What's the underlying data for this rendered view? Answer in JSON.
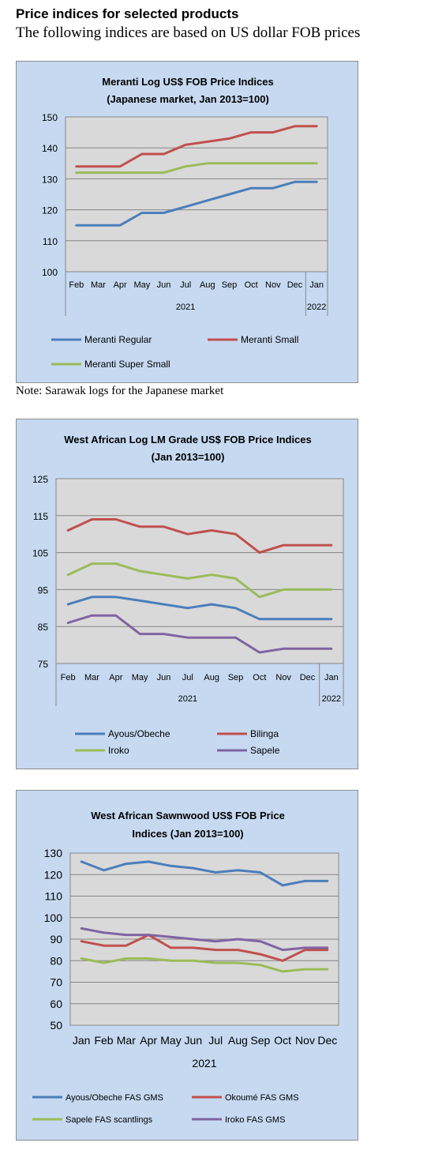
{
  "header": {
    "title": "Price indices for selected products",
    "subtitle": "The following indices are based on US dollar FOB prices"
  },
  "note": "Note: Sarawak logs for the Japanese market",
  "chart_data": [
    {
      "type": "line",
      "title": "Meranti Log US$ FOB Price Indices",
      "subtitle": "(Japanese market, Jan 2013=100)",
      "categories": [
        "Feb",
        "Mar",
        "Apr",
        "May",
        "Jun",
        "Jul",
        "Aug",
        "Sep",
        "Oct",
        "Nov",
        "Dec",
        "Jan"
      ],
      "year_labels": [
        {
          "label": "2021",
          "from": 0,
          "to": 10
        },
        {
          "label": "2022",
          "from": 11,
          "to": 11
        }
      ],
      "ylim": [
        100,
        150
      ],
      "yticks": [
        100,
        110,
        120,
        130,
        140,
        150
      ],
      "grid": true,
      "legend_position": "bottom",
      "legend_columns": 2,
      "series": [
        {
          "name": "Meranti Regular",
          "color": "#4a7ebb",
          "values": [
            115,
            115,
            115,
            119,
            119,
            121,
            123,
            125,
            127,
            127,
            129,
            129
          ]
        },
        {
          "name": "Meranti Small",
          "color": "#c0504d",
          "values": [
            134,
            134,
            134,
            138,
            138,
            141,
            142,
            143,
            145,
            145,
            147,
            147
          ]
        },
        {
          "name": "Meranti Super Small",
          "color": "#9bbb59",
          "values": [
            132,
            132,
            132,
            132,
            132,
            134,
            135,
            135,
            135,
            135,
            135,
            135
          ]
        }
      ]
    },
    {
      "type": "line",
      "title": "West African Log LM Grade US$ FOB Price Indices",
      "subtitle": "(Jan 2013=100)",
      "categories": [
        "Feb",
        "Mar",
        "Apr",
        "May",
        "Jun",
        "Jul",
        "Aug",
        "Sep",
        "Oct",
        "Nov",
        "Dec",
        "Jan"
      ],
      "year_labels": [
        {
          "label": "2021",
          "from": 0,
          "to": 10
        },
        {
          "label": "2022",
          "from": 11,
          "to": 11
        }
      ],
      "ylim": [
        75,
        125
      ],
      "yticks": [
        75,
        85,
        95,
        105,
        115,
        125
      ],
      "grid": true,
      "legend_position": "bottom",
      "legend_columns": 2,
      "series": [
        {
          "name": "Ayous/Obeche",
          "color": "#4a7ebb",
          "values": [
            91,
            93,
            93,
            92,
            91,
            90,
            91,
            90,
            87,
            87,
            87,
            87
          ]
        },
        {
          "name": "Bilinga",
          "color": "#c0504d",
          "values": [
            111,
            114,
            114,
            112,
            112,
            110,
            111,
            110,
            105,
            107,
            107,
            107
          ]
        },
        {
          "name": "Iroko",
          "color": "#9bbb59",
          "values": [
            99,
            102,
            102,
            100,
            99,
            98,
            99,
            98,
            93,
            95,
            95,
            95
          ]
        },
        {
          "name": "Sapele",
          "color": "#8064a2",
          "values": [
            86,
            88,
            88,
            83,
            83,
            82,
            82,
            82,
            78,
            79,
            79,
            79
          ]
        }
      ]
    },
    {
      "type": "line",
      "title": "West African Sawnwood US$ FOB Price",
      "subtitle": "Indices (Jan 2013=100)",
      "categories": [
        "Jan",
        "Feb",
        "Mar",
        "Apr",
        "May",
        "Jun",
        "Jul",
        "Aug",
        "Sep",
        "Oct",
        "Nov",
        "Dec"
      ],
      "year_labels": [
        {
          "label": "2021",
          "from": 0,
          "to": 11
        }
      ],
      "ylim": [
        50,
        130
      ],
      "yticks": [
        50,
        60,
        70,
        80,
        90,
        100,
        110,
        120,
        130
      ],
      "grid": true,
      "legend_position": "bottom",
      "legend_columns": 2,
      "series": [
        {
          "name": "Ayous/Obeche  FAS GMS",
          "color": "#4a7ebb",
          "values": [
            126,
            122,
            125,
            126,
            124,
            123,
            121,
            122,
            121,
            115,
            117,
            117
          ]
        },
        {
          "name": "Okoumé  FAS GMS",
          "color": "#c0504d",
          "values": [
            89,
            87,
            87,
            92,
            86,
            86,
            85,
            85,
            83,
            80,
            85,
            85
          ]
        },
        {
          "name": "Sapele FAS scantlings",
          "color": "#9bbb59",
          "values": [
            81,
            79,
            81,
            81,
            80,
            80,
            79,
            79,
            78,
            75,
            76,
            76
          ]
        },
        {
          "name": "Iroko FAS GMS",
          "color": "#8064a2",
          "values": [
            95,
            93,
            92,
            92,
            91,
            90,
            89,
            90,
            89,
            85,
            86,
            86
          ]
        }
      ]
    }
  ]
}
